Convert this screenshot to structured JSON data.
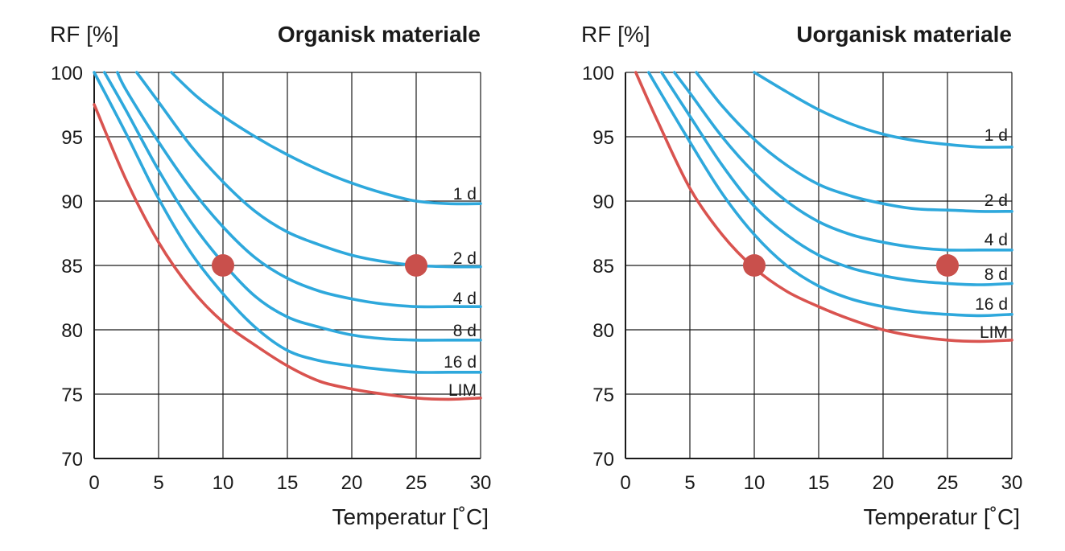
{
  "chart_data": [
    {
      "type": "line",
      "title": "Organisk materiale",
      "ylabel": "RF [%]",
      "xlabel": "Temperatur [˚C]",
      "xlim": [
        0,
        30
      ],
      "ylim": [
        70,
        100
      ],
      "xticks": [
        0,
        5,
        10,
        15,
        20,
        25,
        30
      ],
      "yticks": [
        70,
        75,
        80,
        85,
        90,
        95,
        100
      ],
      "x_tick_labels": [
        "0",
        "5",
        "10",
        "15",
        "20",
        "25",
        "30"
      ],
      "y_tick_labels": [
        "70",
        "75",
        "80",
        "85",
        "90",
        "95",
        "100"
      ],
      "grid": true,
      "series": [
        {
          "name": "1 d",
          "color": "#2ea8dc",
          "x": [
            6,
            8,
            10,
            12.5,
            15,
            17.5,
            20,
            22.5,
            25,
            27.5,
            30
          ],
          "y": [
            100,
            98.1,
            96.6,
            95,
            93.6,
            92.4,
            91.4,
            90.6,
            90.0,
            89.8,
            89.8
          ]
        },
        {
          "name": "2 d",
          "color": "#2ea8dc",
          "x": [
            3.3,
            5,
            7.5,
            10,
            12.5,
            15,
            17.5,
            20,
            22.5,
            25,
            27.5,
            30
          ],
          "y": [
            100,
            97.7,
            94.3,
            91.5,
            89.2,
            87.6,
            86.6,
            85.8,
            85.3,
            85.0,
            84.9,
            84.9
          ]
        },
        {
          "name": "4 d",
          "color": "#2ea8dc",
          "x": [
            1.8,
            2.5,
            5,
            7.5,
            10,
            12.5,
            15,
            17.5,
            20,
            22.5,
            25,
            27.5,
            30
          ],
          "y": [
            100,
            98.6,
            94.6,
            91.0,
            88.0,
            85.6,
            84.0,
            83.0,
            82.4,
            82.0,
            81.8,
            81.8,
            81.8
          ]
        },
        {
          "name": "8 d",
          "color": "#2ea8dc",
          "x": [
            0.8,
            2.5,
            5,
            7.5,
            10,
            12.5,
            15,
            17.5,
            20,
            22.5,
            25,
            27.5,
            30
          ],
          "y": [
            100,
            97.0,
            92.4,
            88.4,
            85.2,
            82.6,
            81.0,
            80.2,
            79.6,
            79.3,
            79.2,
            79.2,
            79.2
          ]
        },
        {
          "name": "16 d",
          "color": "#2ea8dc",
          "x": [
            0,
            2.5,
            5,
            7.5,
            10,
            12.5,
            15,
            17.5,
            20,
            22.5,
            25,
            27.5,
            30
          ],
          "y": [
            100,
            95.2,
            90.2,
            86.0,
            82.8,
            80.2,
            78.4,
            77.6,
            77.2,
            76.9,
            76.7,
            76.7,
            76.7
          ]
        },
        {
          "name": "LIM",
          "color": "#d9534f",
          "x": [
            0,
            2.5,
            5,
            7.5,
            10,
            12.5,
            15,
            17.5,
            20,
            22.5,
            25,
            27.5,
            30
          ],
          "y": [
            97.5,
            91.6,
            86.8,
            83.2,
            80.6,
            78.8,
            77.2,
            76.0,
            75.4,
            75.0,
            74.7,
            74.6,
            74.7
          ]
        }
      ],
      "points": [
        {
          "x": 10,
          "y": 85,
          "color": "#c9504c"
        },
        {
          "x": 25,
          "y": 85,
          "color": "#c9504c"
        }
      ]
    },
    {
      "type": "line",
      "title": "Uorganisk materiale",
      "ylabel": "RF [%]",
      "xlabel": "Temperatur [˚C]",
      "xlim": [
        0,
        30
      ],
      "ylim": [
        70,
        100
      ],
      "xticks": [
        0,
        5,
        10,
        15,
        20,
        25,
        30
      ],
      "yticks": [
        70,
        75,
        80,
        85,
        90,
        95,
        100
      ],
      "x_tick_labels": [
        "0",
        "5",
        "10",
        "15",
        "20",
        "25",
        "30"
      ],
      "y_tick_labels": [
        "70",
        "75",
        "80",
        "85",
        "90",
        "95",
        "100"
      ],
      "grid": true,
      "series": [
        {
          "name": "1 d",
          "color": "#2ea8dc",
          "x": [
            10,
            12.5,
            15,
            17.5,
            20,
            22.5,
            25,
            27.5,
            30
          ],
          "y": [
            100,
            98.5,
            97.1,
            96.0,
            95.2,
            94.7,
            94.4,
            94.2,
            94.2
          ]
        },
        {
          "name": "2 d",
          "color": "#2ea8dc",
          "x": [
            5.5,
            7.5,
            10,
            12.5,
            15,
            17.5,
            20,
            22.5,
            25,
            27.5,
            30
          ],
          "y": [
            100,
            97.4,
            94.8,
            92.8,
            91.3,
            90.4,
            89.8,
            89.4,
            89.3,
            89.2,
            89.2
          ]
        },
        {
          "name": "4 d",
          "color": "#2ea8dc",
          "x": [
            3.8,
            5,
            7.5,
            10,
            12.5,
            15,
            17.5,
            20,
            22.5,
            25,
            27.5,
            30
          ],
          "y": [
            100,
            98.4,
            95.0,
            92.2,
            90.0,
            88.4,
            87.4,
            86.8,
            86.4,
            86.2,
            86.2,
            86.2
          ]
        },
        {
          "name": "8 d",
          "color": "#2ea8dc",
          "x": [
            2.8,
            5,
            7.5,
            10,
            12.5,
            15,
            17.5,
            20,
            22.5,
            25,
            27.5,
            30
          ],
          "y": [
            100,
            96.6,
            92.8,
            89.6,
            87.4,
            85.8,
            84.8,
            84.2,
            83.8,
            83.6,
            83.5,
            83.6
          ]
        },
        {
          "name": "16 d",
          "color": "#2ea8dc",
          "x": [
            1.8,
            2.5,
            5,
            7.5,
            10,
            12.5,
            15,
            17.5,
            20,
            22.5,
            25,
            27.5,
            30
          ],
          "y": [
            100,
            98.8,
            94.6,
            90.6,
            87.4,
            85.0,
            83.4,
            82.4,
            81.8,
            81.4,
            81.2,
            81.1,
            81.2
          ]
        },
        {
          "name": "LIM",
          "color": "#d9534f",
          "x": [
            0.8,
            2.5,
            5,
            7.5,
            10,
            12.5,
            15,
            17.5,
            20,
            22.5,
            25,
            27.5,
            30
          ],
          "y": [
            100,
            96.2,
            91.0,
            87.4,
            84.8,
            83.0,
            81.8,
            80.8,
            80.0,
            79.5,
            79.2,
            79.1,
            79.2
          ]
        }
      ],
      "points": [
        {
          "x": 10,
          "y": 85,
          "color": "#c9504c"
        },
        {
          "x": 25,
          "y": 85,
          "color": "#c9504c"
        }
      ]
    }
  ]
}
